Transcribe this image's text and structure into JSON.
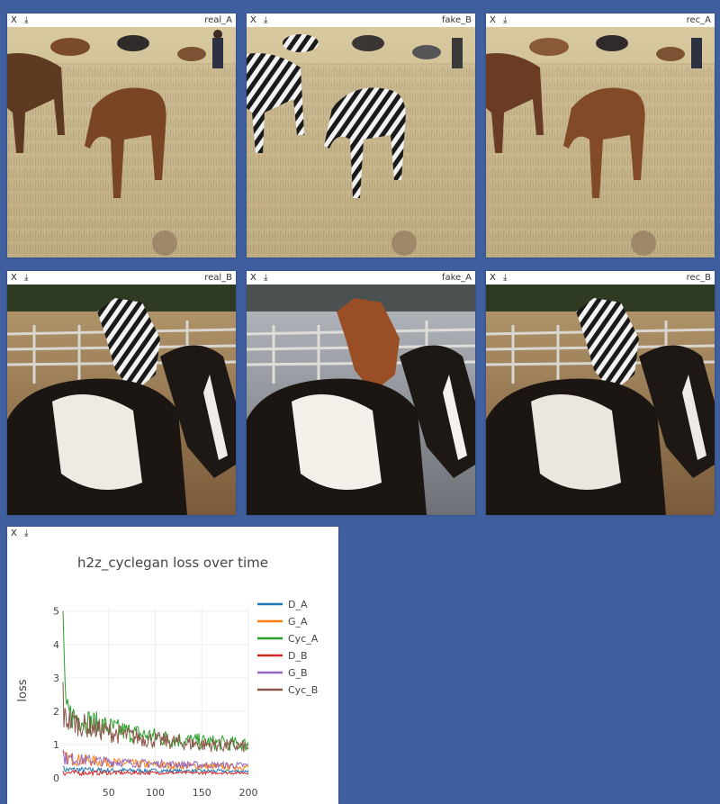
{
  "panes": [
    {
      "close": "X",
      "download": "⤓",
      "title": "real_A",
      "content": "horse"
    },
    {
      "close": "X",
      "download": "⤓",
      "title": "fake_B",
      "content": "zebra"
    },
    {
      "close": "X",
      "download": "⤓",
      "title": "rec_A",
      "content": "horse"
    },
    {
      "close": "X",
      "download": "⤓",
      "title": "real_B",
      "content": "zebra-pinto"
    },
    {
      "close": "X",
      "download": "⤓",
      "title": "fake_A",
      "content": "horse-pinto"
    },
    {
      "close": "X",
      "download": "⤓",
      "title": "rec_B",
      "content": "zebra-pinto"
    }
  ],
  "plot_pane": {
    "close": "X",
    "download": "⤓"
  },
  "chart_data": {
    "type": "line",
    "title": "h2z_cyclegan loss over time",
    "xlabel": "",
    "ylabel": "loss",
    "xlim": [
      1,
      200
    ],
    "ylim": [
      0,
      5.1
    ],
    "x_ticks": [
      "50",
      "100",
      "150",
      "200"
    ],
    "y_ticks": [
      "0",
      "1",
      "2",
      "3",
      "4",
      "5"
    ],
    "legend_position": "right",
    "series": [
      {
        "name": "D_A",
        "color": "#1f77b4",
        "start": 0.25,
        "end": 0.2,
        "noise": 0.06
      },
      {
        "name": "G_A",
        "color": "#ff7f0e",
        "start": 0.6,
        "end": 0.3,
        "noise": 0.12
      },
      {
        "name": "Cyc_A",
        "color": "#2ca02c",
        "start": 2.0,
        "end": 0.9,
        "noise": 0.28
      },
      {
        "name": "D_B",
        "color": "#d62728",
        "start": 0.15,
        "end": 0.15,
        "noise": 0.05
      },
      {
        "name": "G_B",
        "color": "#9467bd",
        "start": 0.6,
        "end": 0.35,
        "noise": 0.12
      },
      {
        "name": "Cyc_B",
        "color": "#8c564b",
        "start": 1.8,
        "end": 0.85,
        "noise": 0.25
      }
    ]
  }
}
